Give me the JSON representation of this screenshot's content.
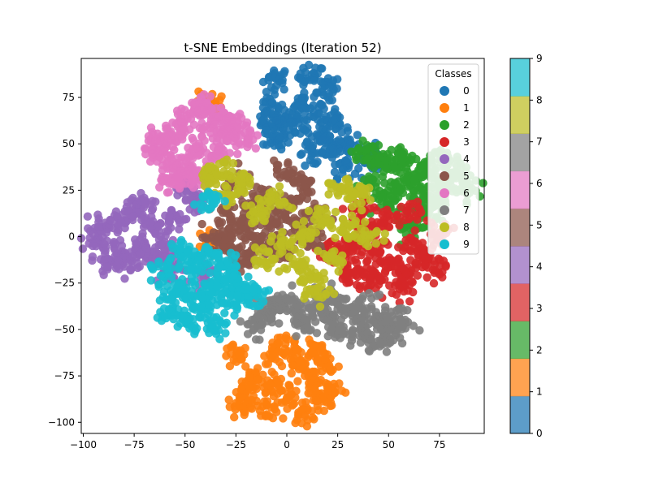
{
  "chart_data": {
    "type": "scatter",
    "title": "t-SNE Embeddings (Iteration 52)",
    "xlabel": "",
    "ylabel": "",
    "xlim": [
      -101,
      97
    ],
    "ylim": [
      -106,
      96
    ],
    "xticks": [
      -100,
      -75,
      -50,
      -25,
      0,
      25,
      50,
      75
    ],
    "yticks": [
      -100,
      -75,
      -50,
      -25,
      0,
      25,
      50,
      75
    ],
    "grid": false,
    "legend": {
      "title": "Classes",
      "position": "upper right"
    },
    "marker_alpha": 0.9,
    "series": [
      {
        "name": "0",
        "color": "#1f77b4",
        "center": [
          15,
          62
        ],
        "cloud": [
          [
            -5,
            85
          ],
          [
            12,
            86
          ],
          [
            20,
            80
          ],
          [
            -8,
            70
          ],
          [
            5,
            60
          ],
          [
            15,
            55
          ],
          [
            22,
            48
          ],
          [
            30,
            50
          ],
          [
            28,
            38
          ],
          [
            -5,
            52
          ],
          [
            8,
            72
          ],
          [
            18,
            66
          ],
          [
            -2,
            62
          ],
          [
            12,
            45
          ],
          [
            24,
            58
          ],
          [
            40,
            45
          ],
          [
            45,
            40
          ],
          [
            -10,
            60
          ]
        ]
      },
      {
        "name": "1",
        "color": "#ff7f0e",
        "center": [
          8,
          -80
        ],
        "cloud": [
          [
            -25,
            -65
          ],
          [
            -20,
            -85
          ],
          [
            -15,
            -75
          ],
          [
            -10,
            -92
          ],
          [
            -5,
            -62
          ],
          [
            0,
            -85
          ],
          [
            5,
            -70
          ],
          [
            8,
            -95
          ],
          [
            12,
            -78
          ],
          [
            16,
            -88
          ],
          [
            20,
            -70
          ],
          [
            22,
            -82
          ],
          [
            -22,
            -92
          ],
          [
            -8,
            -80
          ],
          [
            4,
            -58
          ],
          [
            14,
            -62
          ],
          [
            -40,
            -4
          ],
          [
            -38,
            72
          ]
        ]
      },
      {
        "name": "2",
        "color": "#2ca02c",
        "center": [
          65,
          28
        ],
        "cloud": [
          [
            38,
            46
          ],
          [
            45,
            40
          ],
          [
            52,
            38
          ],
          [
            58,
            42
          ],
          [
            62,
            30
          ],
          [
            70,
            35
          ],
          [
            78,
            28
          ],
          [
            85,
            32
          ],
          [
            88,
            25
          ],
          [
            75,
            20
          ],
          [
            65,
            22
          ],
          [
            55,
            25
          ],
          [
            50,
            18
          ],
          [
            68,
            12
          ],
          [
            80,
            38
          ],
          [
            60,
            5
          ],
          [
            42,
            28
          ],
          [
            72,
            42
          ]
        ]
      },
      {
        "name": "3",
        "color": "#d62728",
        "center": [
          55,
          -5
        ],
        "cloud": [
          [
            25,
            -10
          ],
          [
            32,
            -5
          ],
          [
            38,
            5
          ],
          [
            45,
            -8
          ],
          [
            52,
            -15
          ],
          [
            58,
            -20
          ],
          [
            62,
            -5
          ],
          [
            68,
            -12
          ],
          [
            72,
            -18
          ],
          [
            75,
            2
          ],
          [
            48,
            10
          ],
          [
            40,
            -18
          ],
          [
            30,
            -20
          ],
          [
            55,
            -28
          ],
          [
            35,
            15
          ],
          [
            60,
            12
          ],
          [
            42,
            -25
          ],
          [
            20,
            -8
          ]
        ]
      },
      {
        "name": "4",
        "color": "#9467bd",
        "center": [
          -80,
          -2
        ],
        "cloud": [
          [
            -95,
            -2
          ],
          [
            -90,
            5
          ],
          [
            -85,
            -8
          ],
          [
            -82,
            10
          ],
          [
            -78,
            -15
          ],
          [
            -75,
            15
          ],
          [
            -72,
            -5
          ],
          [
            -70,
            18
          ],
          [
            -68,
            -10
          ],
          [
            -65,
            5
          ],
          [
            -60,
            -5
          ],
          [
            -55,
            10
          ],
          [
            -62,
            -12
          ],
          [
            -88,
            -12
          ],
          [
            -50,
            25
          ],
          [
            -45,
            18
          ],
          [
            -58,
            -18
          ],
          [
            -40,
            -20
          ]
        ]
      },
      {
        "name": "5",
        "color": "#8c564b",
        "center": [
          -12,
          5
        ],
        "cloud": [
          [
            -30,
            10
          ],
          [
            -28,
            -5
          ],
          [
            -22,
            5
          ],
          [
            -18,
            15
          ],
          [
            -15,
            -5
          ],
          [
            -12,
            22
          ],
          [
            -8,
            0
          ],
          [
            -5,
            10
          ],
          [
            -2,
            -8
          ],
          [
            2,
            18
          ],
          [
            5,
            5
          ],
          [
            8,
            28
          ],
          [
            -20,
            -12
          ],
          [
            -25,
            28
          ],
          [
            12,
            -2
          ],
          [
            15,
            12
          ],
          [
            -35,
            0
          ],
          [
            0,
            35
          ]
        ]
      },
      {
        "name": "6",
        "color": "#e377c2",
        "center": [
          -48,
          52
        ],
        "cloud": [
          [
            -65,
            48
          ],
          [
            -60,
            42
          ],
          [
            -55,
            55
          ],
          [
            -52,
            38
          ],
          [
            -50,
            62
          ],
          [
            -45,
            48
          ],
          [
            -42,
            68
          ],
          [
            -38,
            58
          ],
          [
            -35,
            45
          ],
          [
            -32,
            62
          ],
          [
            -58,
            30
          ],
          [
            -48,
            35
          ],
          [
            -40,
            70
          ],
          [
            -30,
            55
          ],
          [
            -62,
            52
          ],
          [
            -25,
            60
          ],
          [
            -44,
            30
          ],
          [
            -20,
            52
          ]
        ]
      },
      {
        "name": "7",
        "color": "#7f7f7f",
        "center": [
          25,
          -42
        ],
        "cloud": [
          [
            -5,
            -38
          ],
          [
            0,
            -35
          ],
          [
            5,
            -42
          ],
          [
            10,
            -48
          ],
          [
            15,
            -38
          ],
          [
            20,
            -45
          ],
          [
            25,
            -52
          ],
          [
            30,
            -40
          ],
          [
            35,
            -48
          ],
          [
            40,
            -55
          ],
          [
            45,
            -42
          ],
          [
            50,
            -48
          ],
          [
            55,
            -45
          ],
          [
            38,
            -38
          ],
          [
            22,
            -32
          ],
          [
            -10,
            -40
          ],
          [
            -15,
            -48
          ],
          [
            48,
            -55
          ]
        ]
      },
      {
        "name": "8",
        "color": "#bcbd22",
        "center": [
          5,
          5
        ],
        "cloud": [
          [
            -38,
            32
          ],
          [
            -32,
            35
          ],
          [
            -28,
            22
          ],
          [
            -22,
            30
          ],
          [
            -15,
            12
          ],
          [
            -10,
            -12
          ],
          [
            -5,
            20
          ],
          [
            0,
            -5
          ],
          [
            5,
            -15
          ],
          [
            8,
            0
          ],
          [
            12,
            -22
          ],
          [
            15,
            -30
          ],
          [
            18,
            10
          ],
          [
            22,
            -12
          ],
          [
            25,
            25
          ],
          [
            30,
            5
          ],
          [
            35,
            22
          ],
          [
            40,
            0
          ]
        ]
      },
      {
        "name": "9",
        "color": "#17becf",
        "center": [
          -45,
          -32
        ],
        "cloud": [
          [
            -60,
            -20
          ],
          [
            -55,
            -32
          ],
          [
            -50,
            -28
          ],
          [
            -48,
            -45
          ],
          [
            -45,
            -15
          ],
          [
            -42,
            -38
          ],
          [
            -38,
            -30
          ],
          [
            -35,
            -48
          ],
          [
            -32,
            -25
          ],
          [
            -28,
            -35
          ],
          [
            -25,
            -22
          ],
          [
            -20,
            -32
          ],
          [
            -58,
            -40
          ],
          [
            -40,
            -10
          ],
          [
            -15,
            -28
          ],
          [
            -52,
            -8
          ],
          [
            -30,
            -15
          ],
          [
            -38,
            20
          ]
        ]
      }
    ]
  },
  "colorbar": {
    "ticks": [
      "0",
      "1",
      "2",
      "3",
      "4",
      "5",
      "6",
      "7",
      "8",
      "9"
    ],
    "colors": [
      "#1f77b4",
      "#ff7f0e",
      "#2ca02c",
      "#d62728",
      "#9467bd",
      "#8c564b",
      "#e377c2",
      "#7f7f7f",
      "#bcbd22",
      "#17becf"
    ]
  }
}
